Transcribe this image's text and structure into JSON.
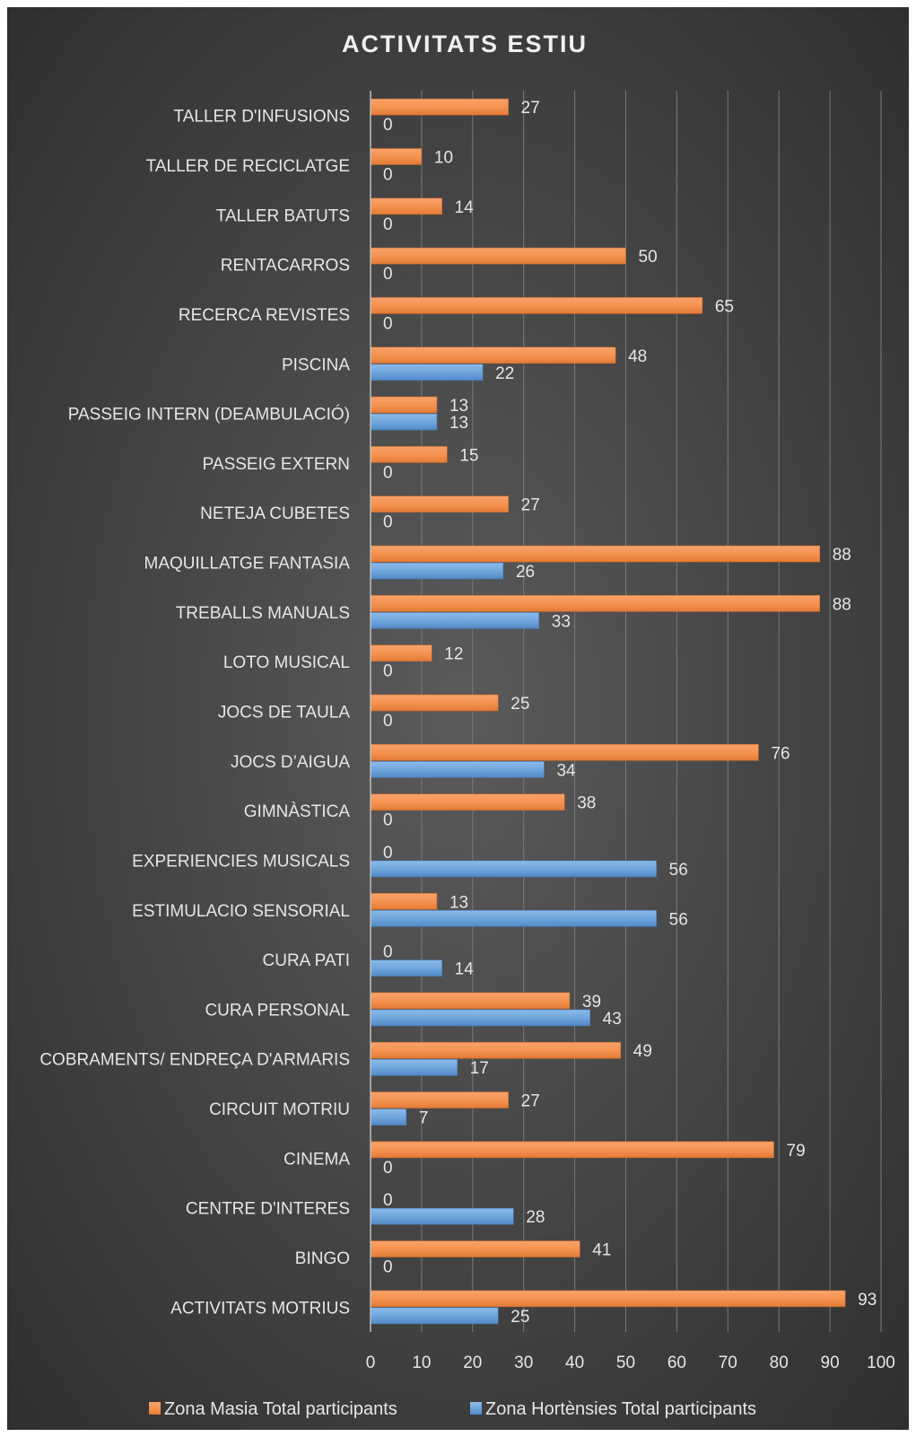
{
  "chart_data": {
    "type": "bar",
    "orientation": "horizontal",
    "title": "ACTIVITATS ESTIU",
    "categories": [
      "TALLER D'INFUSIONS",
      "TALLER DE RECICLATGE",
      "TALLER BATUTS",
      "RENTACARROS",
      "RECERCA REVISTES",
      "PISCINA",
      "PASSEIG INTERN (DEAMBULACIÓ)",
      "PASSEIG EXTERN",
      "NETEJA CUBETES",
      "MAQUILLATGE FANTASIA",
      "TREBALLS MANUALS",
      "LOTO MUSICAL",
      "JOCS DE TAULA",
      "JOCS D’AIGUA",
      "GIMNÀSTICA",
      "EXPERIENCIES MUSICALS",
      "ESTIMULACIO SENSORIAL",
      "CURA PATI",
      "CURA PERSONAL",
      "COBRAMENTS/ ENDREÇA D'ARMARIS",
      "CIRCUIT MOTRIU",
      "CINEMA",
      "CENTRE D'INTERES",
      "BINGO",
      "ACTIVITATS MOTRIUS"
    ],
    "series": [
      {
        "name": "Zona Masia Total participants",
        "color": "#f4914f",
        "values": [
          27,
          10,
          14,
          50,
          65,
          48,
          13,
          15,
          27,
          88,
          88,
          12,
          25,
          76,
          38,
          0,
          13,
          0,
          39,
          49,
          27,
          79,
          0,
          41,
          93
        ]
      },
      {
        "name": "Zona Hortènsies Total participants",
        "color": "#6ea4dc",
        "values": [
          0,
          0,
          0,
          0,
          0,
          22,
          13,
          0,
          0,
          26,
          33,
          0,
          0,
          34,
          0,
          56,
          56,
          14,
          43,
          17,
          7,
          0,
          28,
          0,
          25
        ]
      }
    ],
    "xlim": [
      0,
      100
    ],
    "xticks": [
      0,
      10,
      20,
      30,
      40,
      50,
      60,
      70,
      80,
      90,
      100
    ],
    "grid": "vertical",
    "legend": "bottom",
    "data_labels": true
  }
}
